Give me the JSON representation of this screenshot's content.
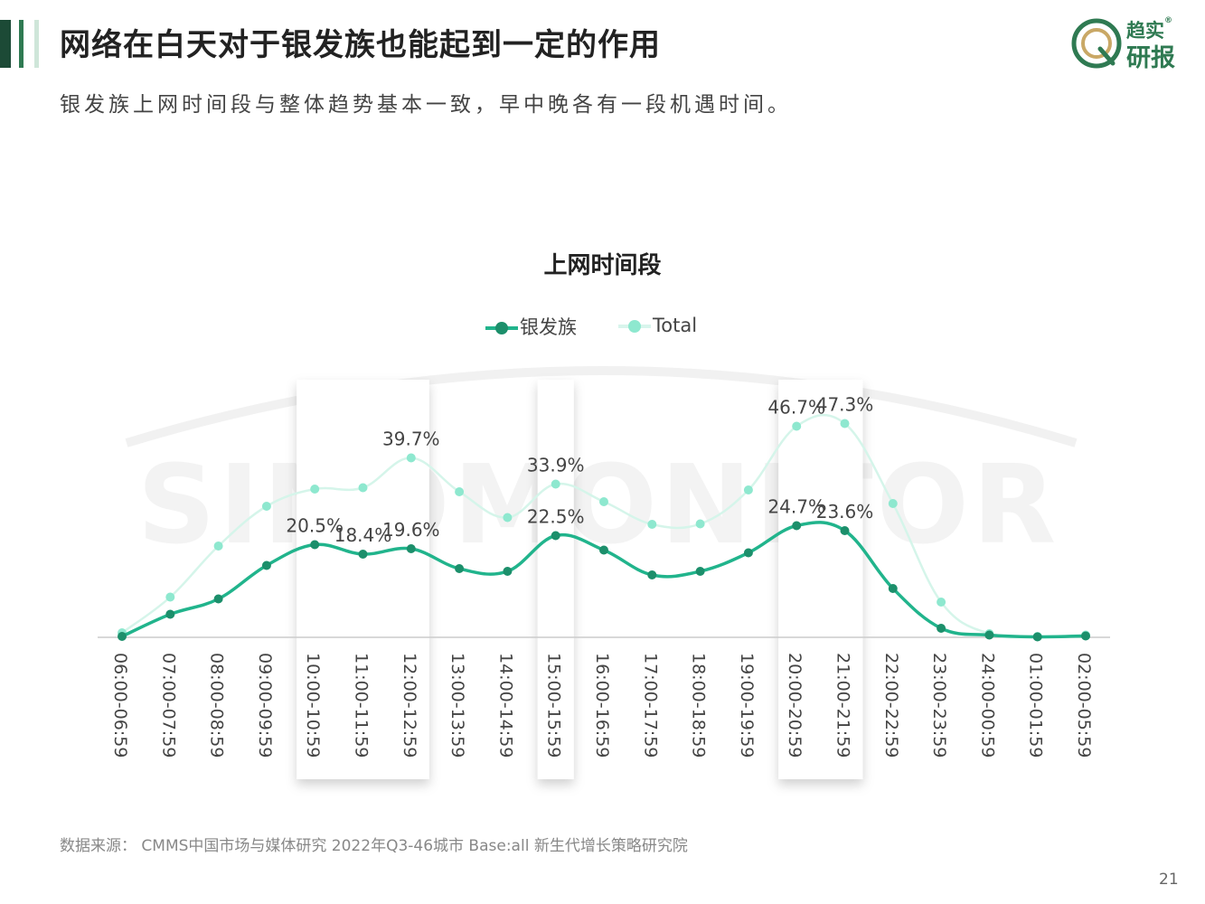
{
  "header": {
    "title": "网络在白天对于银发族也能起到一定的作用",
    "subtitle": "银发族上网时间段与整体趋势基本一致，早中晚各有一段机遇时间。"
  },
  "logo": {
    "line1": "趋实",
    "line2": "研报",
    "mark": "®"
  },
  "watermark": "SINOMONITOR",
  "footer": {
    "source": "数据来源：  CMMS中国市场与媒体研究 2022年Q3-46城市 Base:all   新生代增长策略研究院",
    "page": "21"
  },
  "colors": {
    "series_silver": "#21b48c",
    "series_total": "#8ee8cf",
    "title_bar_dark": "#1c4a36",
    "accent": "#2f7a52"
  },
  "chart_data": {
    "type": "line",
    "title": "上网时间段",
    "categories": [
      "06:00-06:59",
      "07:00-07:59",
      "08:00-08:59",
      "09:00-09:59",
      "10:00-10:59",
      "11:00-11:59",
      "12:00-12:59",
      "13:00-13:59",
      "14:00-14:59",
      "15:00-15:59",
      "16:00-16:59",
      "17:00-17:59",
      "18:00-18:59",
      "19:00-19:59",
      "20:00-20:59",
      "21:00-21:59",
      "22:00-22:59",
      "23:00-23:59",
      "24:00-00:59",
      "01:00-01:59",
      "02:00-05:59"
    ],
    "highlight_categories": [
      "10:00-10:59",
      "11:00-11:59",
      "12:00-12:59",
      "15:00-15:59",
      "20:00-20:59",
      "21:00-21:59"
    ],
    "series": [
      {
        "name": "银发族",
        "values": [
          0.2,
          5.1,
          8.5,
          15.9,
          20.5,
          18.4,
          19.6,
          15.2,
          14.6,
          22.5,
          19.3,
          13.8,
          14.6,
          18.7,
          24.7,
          23.6,
          10.8,
          2.0,
          0.5,
          0.1,
          0.3
        ],
        "labels": {
          "10:00-10:59": "20.5%",
          "11:00-11:59": "18.4%",
          "12:00-12:59": "19.6%",
          "15:00-15:59": "22.5%",
          "20:00-20:59": "24.7%",
          "21:00-21:59": "23.6%"
        }
      },
      {
        "name": "Total",
        "values": [
          1.0,
          8.9,
          20.2,
          29.0,
          32.8,
          33.1,
          39.7,
          32.2,
          26.5,
          33.9,
          30.0,
          25.0,
          25.1,
          32.6,
          46.7,
          47.3,
          29.6,
          7.8,
          0.8,
          0.2,
          0.5
        ],
        "labels": {
          "12:00-12:59": "39.7%",
          "15:00-15:59": "33.9%",
          "20:00-20:59": "46.7%",
          "21:00-21:59": "47.3%"
        }
      }
    ],
    "ylim": [
      0,
      50
    ],
    "xlabel": "",
    "ylabel": "",
    "legend": "top-center",
    "grid": false
  }
}
